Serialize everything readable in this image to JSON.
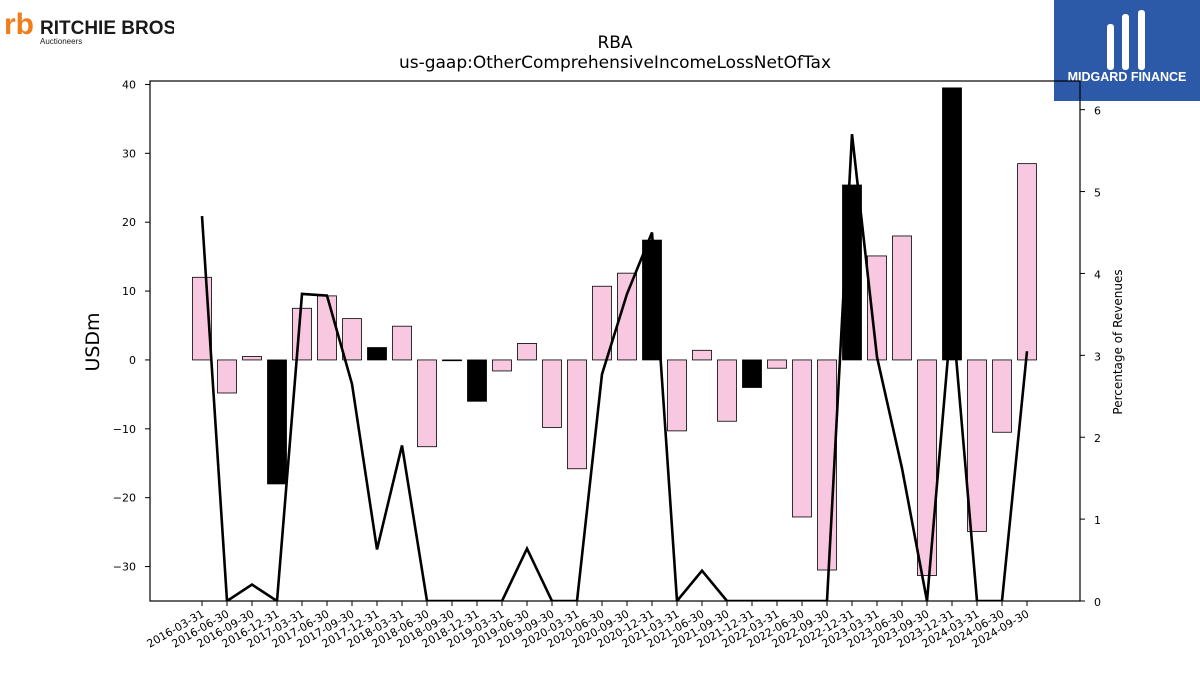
{
  "logos": {
    "left": {
      "brand": "RITCHIE BROS.",
      "sub": "Auctioneers"
    },
    "right": {
      "brand": "MIDGARD FINANCE"
    }
  },
  "colors": {
    "pos_bar": "#f8c8e0",
    "neg_bar": "#000000",
    "line": "#000000",
    "right_logo_bg": "#2d5aa8"
  },
  "chart_data": {
    "type": "bar",
    "title": "RBA",
    "subtitle": "us-gaap:OtherComprehensiveIncomeLossNetOfTax",
    "ylabel": "USDm",
    "y2label": "Percentage of Revenues",
    "ylim": [
      -35,
      40.5
    ],
    "y2lim": [
      0,
      6.35
    ],
    "yticks": [
      40,
      30,
      20,
      10,
      0,
      -10,
      -20,
      -30
    ],
    "y2ticks": [
      0,
      1,
      2,
      3,
      4,
      5,
      6
    ],
    "categories": [
      "2016-03-31",
      "2016-06-30",
      "2016-09-30",
      "2016-12-31",
      "2017-03-31",
      "2017-06-30",
      "2017-09-30",
      "2017-12-31",
      "2018-03-31",
      "2018-06-30",
      "2018-09-30",
      "2018-12-31",
      "2019-03-31",
      "2019-06-30",
      "2019-09-30",
      "2020-03-31",
      "2020-06-30",
      "2020-09-30",
      "2020-12-31",
      "2021-03-31",
      "2021-06-30",
      "2021-09-30",
      "2021-12-31",
      "2022-03-31",
      "2022-06-30",
      "2022-09-30",
      "2022-12-31",
      "2023-03-31",
      "2023-06-30",
      "2023-09-30",
      "2023-12-31",
      "2024-03-31",
      "2024-06-30",
      "2024-09-30"
    ],
    "series": [
      {
        "kind": "bar",
        "values": [
          12.0,
          -4.8,
          0.5,
          -18.0,
          7.5,
          9.3,
          6.0,
          1.8,
          4.9,
          -12.6,
          -0.1,
          -6.0,
          -1.6,
          2.4,
          -9.8,
          -15.8,
          10.7,
          12.6,
          17.4,
          -10.3,
          1.4,
          -8.9,
          -4.0,
          -1.2,
          -22.8,
          -30.5,
          25.4,
          15.1,
          18.0,
          -31.3,
          39.5,
          -24.9,
          -10.5,
          28.5
        ],
        "dark": [
          false,
          false,
          false,
          true,
          false,
          false,
          false,
          true,
          false,
          false,
          true,
          true,
          false,
          false,
          false,
          false,
          false,
          false,
          true,
          false,
          false,
          false,
          true,
          false,
          false,
          false,
          true,
          false,
          false,
          false,
          true,
          false,
          false,
          false
        ]
      },
      {
        "kind": "line",
        "axis": "right",
        "values": [
          4.7,
          0.0,
          0.2,
          0.0,
          3.75,
          3.73,
          2.65,
          0.63,
          1.9,
          0.0,
          0.0,
          0.0,
          0.0,
          0.64,
          0.0,
          0.0,
          2.77,
          3.75,
          4.5,
          0.0,
          0.37,
          0.0,
          0.0,
          0.0,
          0.0,
          0.0,
          5.7,
          2.98,
          1.62,
          0.0,
          3.56,
          0.0,
          0.0,
          3.05
        ]
      }
    ]
  }
}
